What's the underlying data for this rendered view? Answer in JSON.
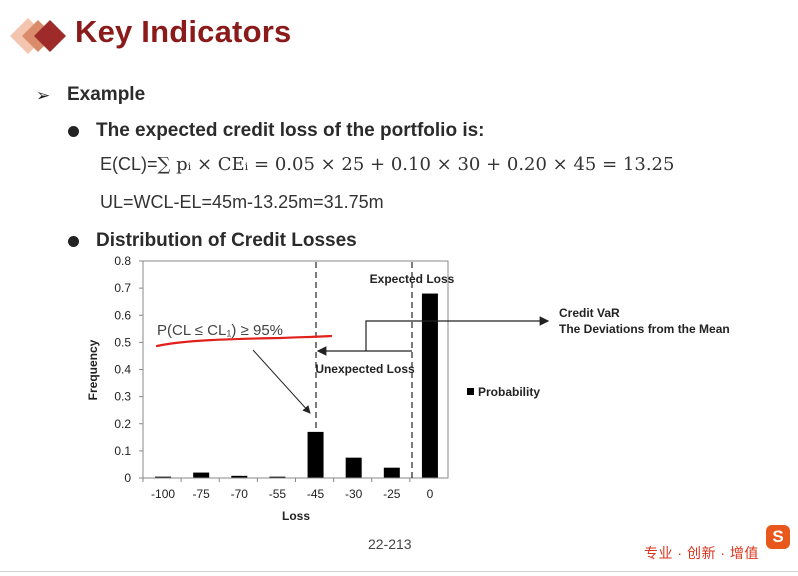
{
  "header": {
    "title": "Key Indicators"
  },
  "content": {
    "example_label": "Example",
    "bullet1": "The expected credit loss of the portfolio is:",
    "formula1_lead": "E(CL)=",
    "formula1_rest": "∑ pᵢ × CEᵢ = 0.05 × 25 + 0.10 × 30 + 0.20 × 45 = 13.25",
    "formula2": "UL=WCL-EL=45m-13.25m=31.75m",
    "bullet2": "Distribution of Credit Losses"
  },
  "footer": {
    "page_number": "22-213",
    "brand_text": "专业 · 创新 · 增值",
    "brand_logo_letter": "S"
  },
  "colors": {
    "title": "#8b1a1a",
    "bar": "#000000",
    "annotation_red": "#e0201b"
  },
  "chart_data": {
    "type": "bar",
    "categories": [
      "-100",
      "-75",
      "-70",
      "-55",
      "-45",
      "-30",
      "-25",
      "0"
    ],
    "series": [
      {
        "name": "Probability",
        "values": [
          0.005,
          0.02,
          0.008,
          0.005,
          0.17,
          0.075,
          0.038,
          0.68
        ]
      }
    ],
    "xlabel": "Loss",
    "ylabel": "Frequency",
    "ylim": [
      0,
      0.8
    ],
    "yticks": [
      "0",
      "0.1",
      "0.2",
      "0.3",
      "0.4",
      "0.5",
      "0.6",
      "0.7",
      "0.8"
    ],
    "grid": false,
    "legend_position": "right",
    "annotations": {
      "expected_loss": "Expected Loss",
      "unexpected_loss": "Unexpected Loss",
      "credit_var": "Credit VaR",
      "deviation": "The Deviations from the Mean",
      "handwritten": "P(CL ≤ CL₁) ≥ 95%"
    }
  }
}
